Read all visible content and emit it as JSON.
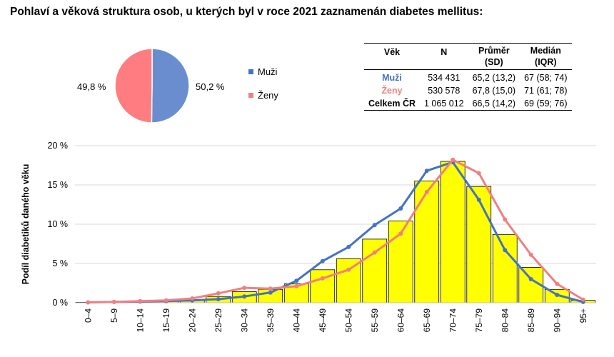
{
  "title": "Pohlaví a věková struktura osob, u kterých byl v roce 2021 zaznamenán diabetes mellitus:",
  "colors": {
    "men": "#4472C4",
    "women": "#F08080",
    "bar": "#FFFF00",
    "men_pie": "#6A8DD0",
    "women_pie": "#FF7C80"
  },
  "pie": {
    "slices": [
      {
        "name": "Muži",
        "value": 50.2,
        "label": "50,2 %"
      },
      {
        "name": "Ženy",
        "value": 49.8,
        "label": "49,8 %"
      }
    ]
  },
  "legend": [
    {
      "label": "Muži",
      "color": "#4472C4"
    },
    {
      "label": "Ženy",
      "color": "#F08080"
    }
  ],
  "table": {
    "headers": [
      {
        "line1": "Věk",
        "line2": ""
      },
      {
        "line1": "N",
        "line2": ""
      },
      {
        "line1": "Průměr",
        "line2": "(SD)"
      },
      {
        "line1": "Medián",
        "line2": "(IQR)"
      }
    ],
    "rows": [
      {
        "label": "Muži",
        "color": "#4472C4",
        "n": "534 431",
        "mean": "65,2 (13,2)",
        "median": "67 (58; 74)"
      },
      {
        "label": "Ženy",
        "color": "#F08080",
        "n": "530 578",
        "mean": "67,8 (15,0)",
        "median": "71 (61; 78)"
      },
      {
        "label": "Celkem ČR",
        "color": "#000000",
        "n": "1 065 012",
        "mean": "66,5 (14,2)",
        "median": "69 (59; 76)"
      }
    ]
  },
  "chart_data": {
    "type": "bar",
    "title": "",
    "xlabel": "",
    "ylabel": "Podíl diabetiků daného věku",
    "ylim": [
      0,
      20
    ],
    "yticks": [
      "0 %",
      "5 %",
      "10 %",
      "15 %",
      "20 %"
    ],
    "ytick_values": [
      0,
      5,
      10,
      15,
      20
    ],
    "grid": true,
    "categories": [
      "0–4",
      "5–9",
      "10–14",
      "15–19",
      "20–24",
      "25–29",
      "30–34",
      "35–39",
      "40–44",
      "45–49",
      "50–54",
      "55–59",
      "60–64",
      "65–69",
      "70–74",
      "75–79",
      "80–84",
      "85–89",
      "90–94",
      "95+"
    ],
    "series": [
      {
        "name": "Celkem",
        "kind": "bar",
        "values": [
          0.05,
          0.1,
          0.15,
          0.2,
          0.35,
          0.8,
          1.4,
          1.7,
          2.4,
          4.2,
          5.6,
          8.1,
          10.4,
          15.5,
          18.0,
          14.8,
          8.7,
          4.5,
          1.7,
          0.3
        ]
      },
      {
        "name": "Muži",
        "kind": "line",
        "values": [
          0.05,
          0.1,
          0.15,
          0.2,
          0.3,
          0.45,
          0.8,
          1.3,
          2.8,
          5.3,
          7.1,
          9.9,
          12.0,
          16.8,
          17.9,
          13.1,
          6.7,
          3.0,
          1.0,
          0.1
        ]
      },
      {
        "name": "Ženy",
        "kind": "line",
        "values": [
          0.05,
          0.1,
          0.2,
          0.3,
          0.55,
          1.2,
          1.9,
          1.8,
          2.1,
          3.1,
          4.2,
          6.4,
          8.8,
          14.1,
          18.2,
          16.5,
          10.6,
          6.1,
          2.4,
          0.4
        ]
      }
    ]
  }
}
